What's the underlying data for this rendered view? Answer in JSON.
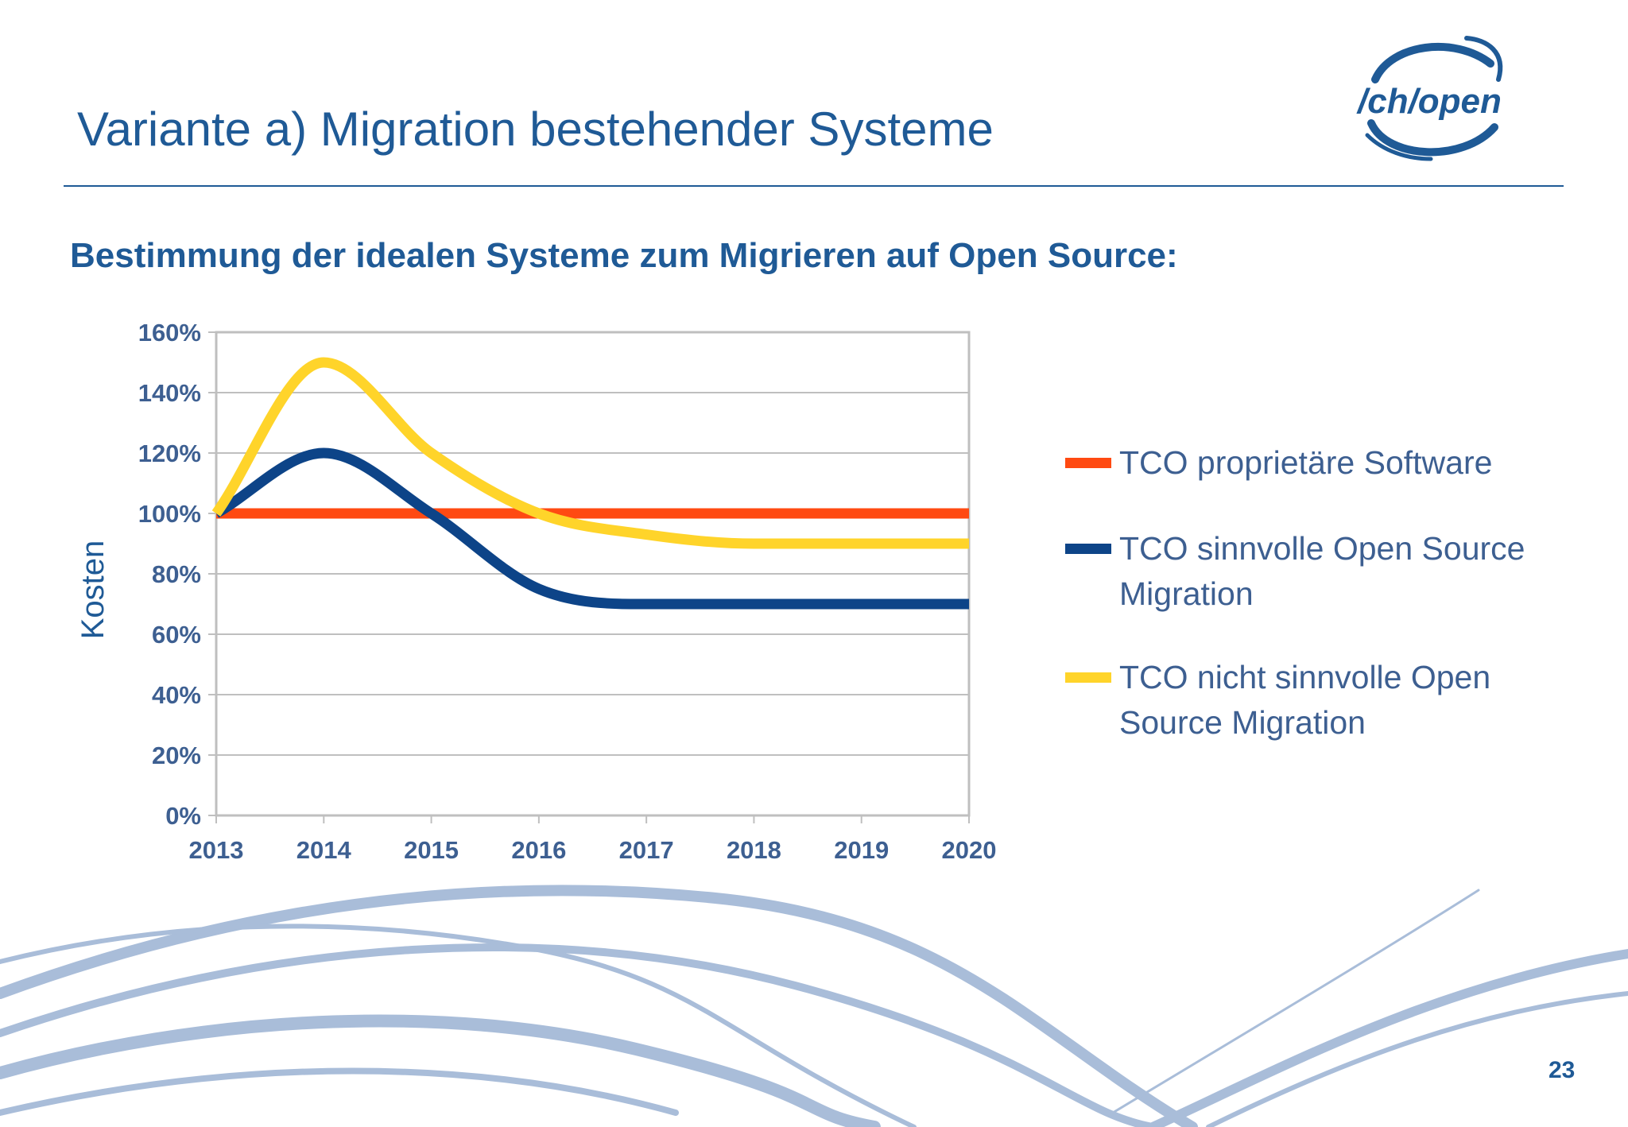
{
  "slide": {
    "title": "Variante a) Migration bestehender Systeme",
    "subtitle": "Bestimmung der idealen Systeme zum Migrieren auf Open Source:",
    "logo_text": "/ch/open",
    "page_number": "23"
  },
  "colors": {
    "brand_blue": "#1f5a96",
    "axis_text": "#3d5f91",
    "grid": "#bfbfbf",
    "wave": "#a9bdd9"
  },
  "chart_data": {
    "type": "line",
    "title": "",
    "xlabel": "",
    "ylabel": "Kosten",
    "x": [
      "2013",
      "2014",
      "2015",
      "2016",
      "2017",
      "2018",
      "2019",
      "2020"
    ],
    "y_ticks": [
      "0%",
      "20%",
      "40%",
      "60%",
      "80%",
      "100%",
      "120%",
      "140%",
      "160%"
    ],
    "ylim": [
      0,
      160
    ],
    "grid": true,
    "legend_position": "right",
    "smooth": true,
    "series": [
      {
        "name": "TCO proprietäre Software",
        "color": "#ff4a12",
        "values": [
          100,
          100,
          100,
          100,
          100,
          100,
          100,
          100
        ]
      },
      {
        "name": "TCO sinnvolle Open Source Migration",
        "color": "#0d4488",
        "values": [
          100,
          120,
          100,
          75,
          70,
          70,
          70,
          70
        ]
      },
      {
        "name": "TCO nicht sinnvolle Open Source Migration",
        "color": "#ffd42a",
        "values": [
          100,
          150,
          120,
          100,
          93,
          90,
          90,
          90
        ]
      }
    ]
  }
}
